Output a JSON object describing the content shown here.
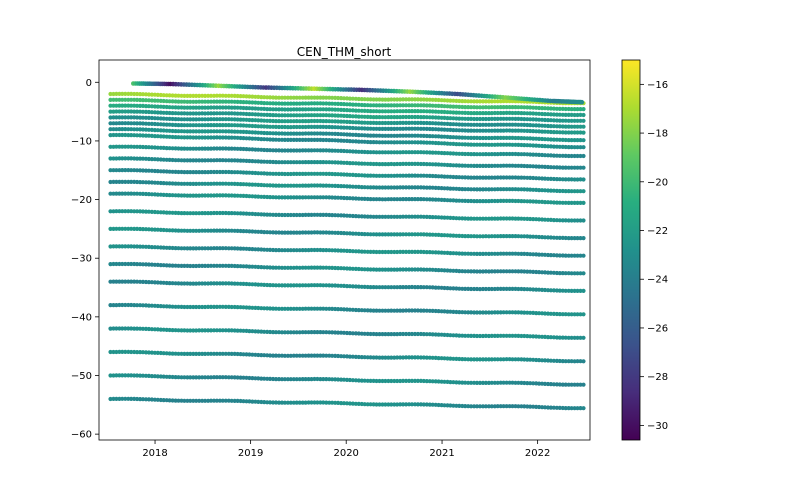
{
  "chart_data": {
    "type": "scatter",
    "title": "CEN_THM_short",
    "xlabel": "",
    "ylabel": "",
    "x_range": [
      "2017-06-01",
      "2022-07-20"
    ],
    "ylim": [
      -61,
      3.8
    ],
    "x_ticks": [
      "2018",
      "2019",
      "2020",
      "2021",
      "2022"
    ],
    "y_ticks": [
      0,
      -10,
      -20,
      -30,
      -40,
      -50,
      -60
    ],
    "grid": false,
    "colormap": "viridis",
    "colorbar": {
      "range": [
        -30.6,
        -15
      ],
      "ticks": [
        -16,
        -18,
        -20,
        -22,
        -24,
        -26,
        -28,
        -30
      ]
    },
    "x_start": "2017-07-15",
    "x_end": "2022-06-25",
    "depth_series": [
      {
        "start": -2.0,
        "end": -3.5,
        "color_value": -17.5
      },
      {
        "start": -3.0,
        "end": -4.5,
        "color_value": -20.5
      },
      {
        "start": -4.0,
        "end": -5.5,
        "color_value": -21.5
      },
      {
        "start": -5.0,
        "end": -6.5,
        "color_value": -22.0
      },
      {
        "start": -6.0,
        "end": -7.5,
        "color_value": -22.5
      },
      {
        "start": -7.0,
        "end": -8.5,
        "color_value": -22.8
      },
      {
        "start": -8.0,
        "end": -9.8,
        "color_value": -23.0
      },
      {
        "start": -9.0,
        "end": -11.0,
        "color_value": -23.0
      },
      {
        "start": -11.0,
        "end": -12.5,
        "color_value": -23.0
      },
      {
        "start": -13.0,
        "end": -14.5,
        "color_value": -23.0
      },
      {
        "start": -15.0,
        "end": -16.5,
        "color_value": -23.0
      },
      {
        "start": -17.0,
        "end": -18.5,
        "color_value": -23.0
      },
      {
        "start": -19.0,
        "end": -20.5,
        "color_value": -23.0
      },
      {
        "start": -22.0,
        "end": -23.5,
        "color_value": -23.0
      },
      {
        "start": -25.0,
        "end": -26.5,
        "color_value": -23.0
      },
      {
        "start": -28.0,
        "end": -29.5,
        "color_value": -23.0
      },
      {
        "start": -31.0,
        "end": -32.5,
        "color_value": -23.2
      },
      {
        "start": -34.0,
        "end": -35.5,
        "color_value": -23.2
      },
      {
        "start": -38.0,
        "end": -39.5,
        "color_value": -23.2
      },
      {
        "start": -42.0,
        "end": -43.5,
        "color_value": -23.2
      },
      {
        "start": -46.0,
        "end": -47.5,
        "color_value": -23.2
      },
      {
        "start": -50.0,
        "end": -51.5,
        "color_value": -23.2
      },
      {
        "start": -54.0,
        "end": -55.5,
        "color_value": -23.2
      }
    ],
    "surface_series": {
      "points": [
        {
          "x": "2017-10-10",
          "y": -0.2
        },
        {
          "x": "2018-03-01",
          "y": -0.3
        },
        {
          "x": "2018-09-01",
          "y": -0.6
        },
        {
          "x": "2019-03-01",
          "y": -0.9
        },
        {
          "x": "2019-09-01",
          "y": -1.1
        },
        {
          "x": "2020-03-01",
          "y": -1.3
        },
        {
          "x": "2020-09-01",
          "y": -1.6
        },
        {
          "x": "2021-03-01",
          "y": -2.0
        },
        {
          "x": "2021-09-01",
          "y": -2.6
        },
        {
          "x": "2022-03-01",
          "y": -3.2
        },
        {
          "x": "2022-06-25",
          "y": -3.4
        }
      ],
      "color_values": [
        -19.5,
        -30.0,
        -17.5,
        -28.0,
        -16.5,
        -28.5,
        -17.5,
        -27.0,
        -18.0,
        -24.0,
        -23.0
      ]
    }
  }
}
